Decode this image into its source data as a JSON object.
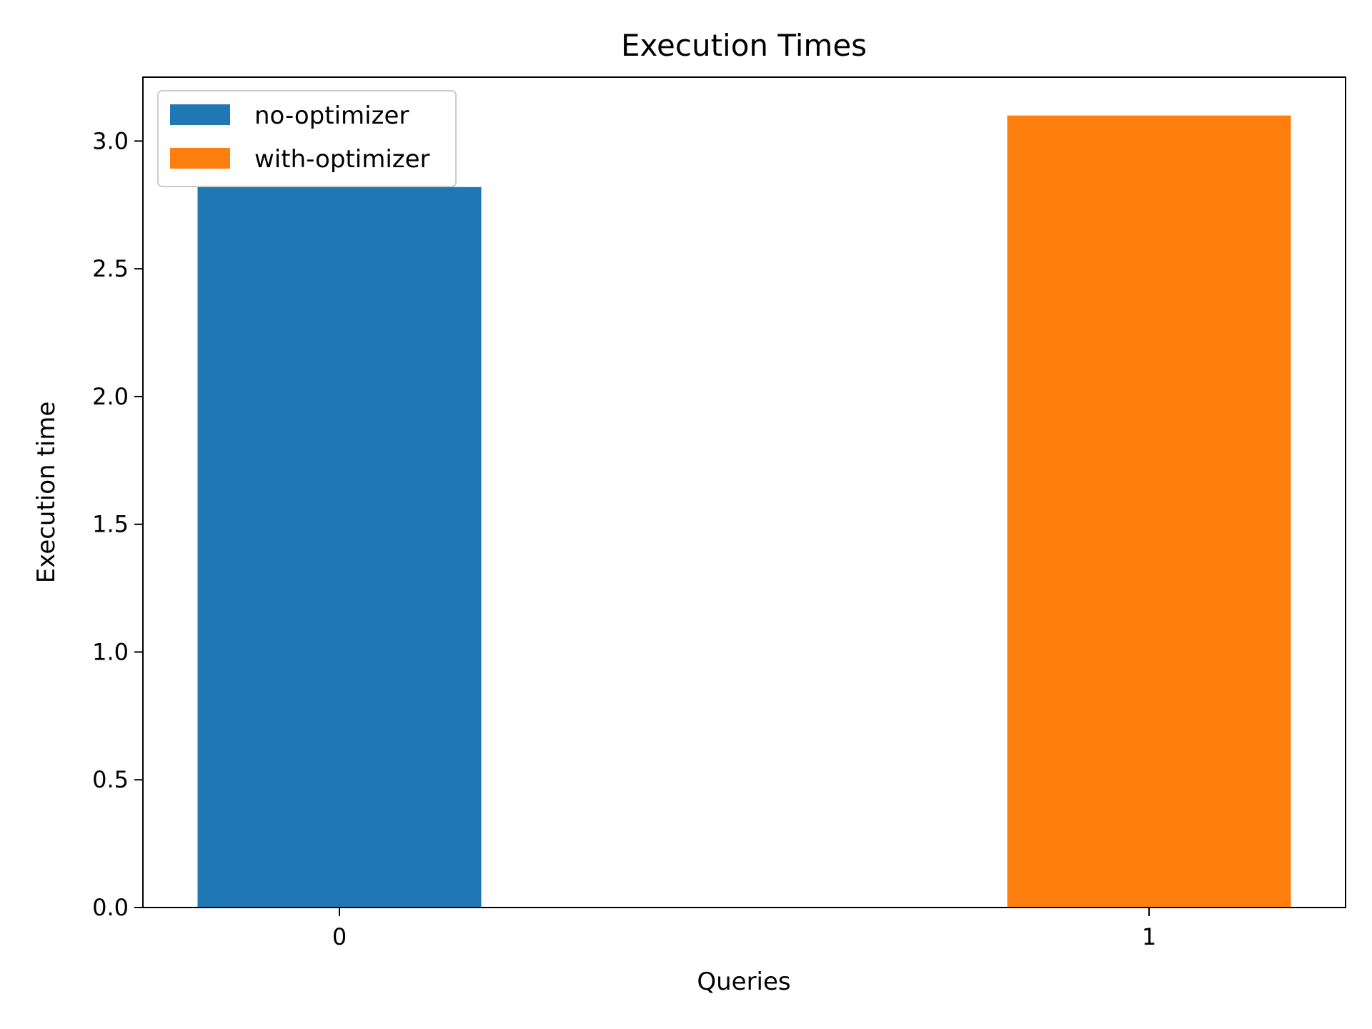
{
  "chart_data": {
    "type": "bar",
    "title": "Execution Times",
    "xlabel": "Queries",
    "ylabel": "Execution time",
    "x_ticks": [
      "0",
      "1"
    ],
    "y_ticks": [
      "0.0",
      "0.5",
      "1.0",
      "1.5",
      "2.0",
      "2.5",
      "3.0"
    ],
    "ylim": [
      0,
      3.25
    ],
    "legend_position": "upper-left",
    "series": [
      {
        "name": "no-optimizer",
        "x": 0,
        "value": 2.82,
        "color": "#1f77b4"
      },
      {
        "name": "with-optimizer",
        "x": 1,
        "value": 3.1,
        "color": "#ff7f0e"
      }
    ]
  }
}
